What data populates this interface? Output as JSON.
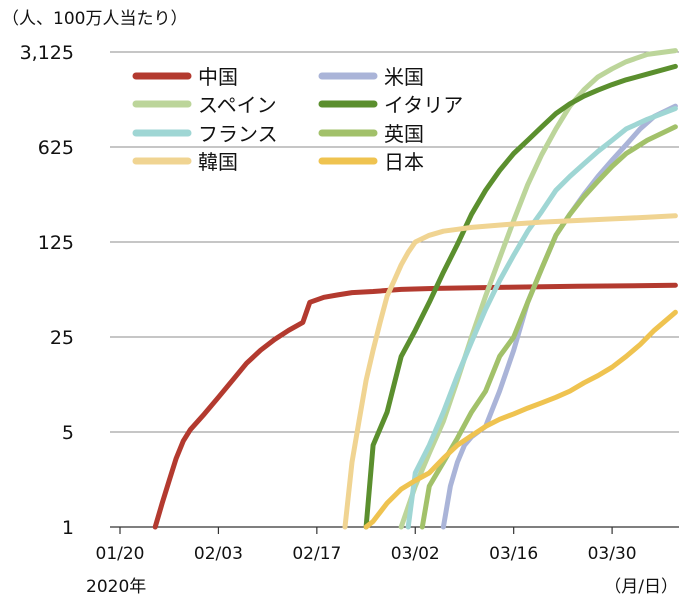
{
  "chart_data": {
    "type": "line",
    "unit_label": "（人、100万人当たり）",
    "year_label": "2020年",
    "x_unit_label": "（月/日）",
    "yscale": "log5",
    "ylim": [
      1,
      3125
    ],
    "yticks": [
      1,
      5,
      25,
      125,
      625,
      3125
    ],
    "ytick_labels": [
      "1",
      "5",
      "25",
      "125",
      "625",
      "3,125"
    ],
    "x_day_range": [
      0,
      79
    ],
    "xticks": [
      0,
      14,
      28,
      42,
      56,
      70
    ],
    "xtick_labels": [
      "01/20",
      "02/03",
      "02/17",
      "03/02",
      "03/16",
      "03/30"
    ],
    "grid": true,
    "legend_position": "top-left",
    "series": [
      {
        "name": "中国",
        "color": "#b33a2f",
        "x": [
          5,
          6,
          7,
          8,
          9,
          10,
          12,
          14,
          16,
          18,
          20,
          22,
          24,
          26,
          27,
          29,
          31,
          33,
          36,
          40,
          45,
          55,
          65,
          79
        ],
        "y": [
          1,
          1.5,
          2.2,
          3.2,
          4.3,
          5.2,
          6.8,
          9,
          12,
          16,
          20,
          24,
          28,
          32,
          45,
          49,
          51,
          53,
          54,
          56,
          57,
          58,
          59,
          60
        ]
      },
      {
        "name": "米国",
        "color": "#aab4d8",
        "x": [
          46,
          47,
          48,
          49,
          50,
          52,
          54,
          56,
          58,
          60,
          62,
          64,
          66,
          68,
          70,
          72,
          74,
          76,
          79
        ],
        "y": [
          1,
          2,
          3,
          4,
          4.6,
          5.5,
          10,
          20,
          45,
          80,
          140,
          200,
          280,
          380,
          500,
          650,
          850,
          1050,
          1250
        ]
      },
      {
        "name": "スペイン",
        "color": "#bcd59a",
        "x": [
          40,
          42,
          44,
          46,
          48,
          50,
          52,
          54,
          56,
          58,
          60,
          62,
          64,
          66,
          68,
          70,
          72,
          75,
          79
        ],
        "y": [
          1,
          2,
          3.5,
          6,
          12,
          25,
          50,
          95,
          180,
          330,
          550,
          850,
          1250,
          1650,
          2050,
          2350,
          2650,
          3000,
          3200
        ]
      },
      {
        "name": "イタリア",
        "color": "#5b8f2e",
        "x": [
          35,
          36,
          38,
          40,
          42,
          44,
          46,
          48,
          50,
          52,
          54,
          56,
          58,
          60,
          62,
          64,
          66,
          68,
          70,
          72,
          75,
          79
        ],
        "y": [
          1,
          4,
          7,
          18,
          28,
          45,
          75,
          120,
          200,
          300,
          420,
          560,
          700,
          880,
          1100,
          1300,
          1480,
          1640,
          1800,
          1950,
          2150,
          2450
        ]
      },
      {
        "name": "フランス",
        "color": "#9fd6d4",
        "x": [
          41,
          42,
          44,
          46,
          48,
          50,
          52,
          54,
          56,
          58,
          60,
          62,
          64,
          66,
          68,
          70,
          72,
          75,
          79
        ],
        "y": [
          1,
          2.5,
          4,
          7,
          13,
          23,
          40,
          65,
          100,
          150,
          210,
          300,
          380,
          470,
          580,
          700,
          850,
          1000,
          1200
        ]
      },
      {
        "name": "英国",
        "color": "#a2c16a",
        "x": [
          43,
          44,
          46,
          48,
          50,
          52,
          54,
          56,
          58,
          60,
          62,
          64,
          66,
          68,
          70,
          72,
          75,
          79
        ],
        "y": [
          1,
          2,
          3,
          4.5,
          7,
          10,
          18,
          25,
          45,
          80,
          140,
          200,
          270,
          350,
          450,
          560,
          700,
          880
        ]
      },
      {
        "name": "韓国",
        "color": "#f0d492",
        "x": [
          32,
          33,
          34,
          35,
          36,
          37,
          38,
          39,
          40,
          41,
          42,
          44,
          46,
          48,
          50,
          55,
          60,
          65,
          70,
          75,
          79
        ],
        "y": [
          1,
          3,
          6,
          12,
          20,
          32,
          50,
          65,
          85,
          105,
          125,
          140,
          150,
          155,
          160,
          168,
          175,
          180,
          185,
          190,
          195
        ]
      },
      {
        "name": "日本",
        "color": "#efc350",
        "x": [
          35,
          36,
          38,
          40,
          42,
          44,
          46,
          48,
          50,
          52,
          54,
          56,
          58,
          60,
          62,
          64,
          66,
          68,
          70,
          72,
          74,
          76,
          79
        ],
        "y": [
          1,
          1.1,
          1.5,
          1.9,
          2.2,
          2.5,
          3.2,
          4,
          4.7,
          5.5,
          6.2,
          6.8,
          7.5,
          8.2,
          9,
          10,
          11.5,
          13,
          15,
          18,
          22,
          28,
          38
        ]
      }
    ]
  }
}
